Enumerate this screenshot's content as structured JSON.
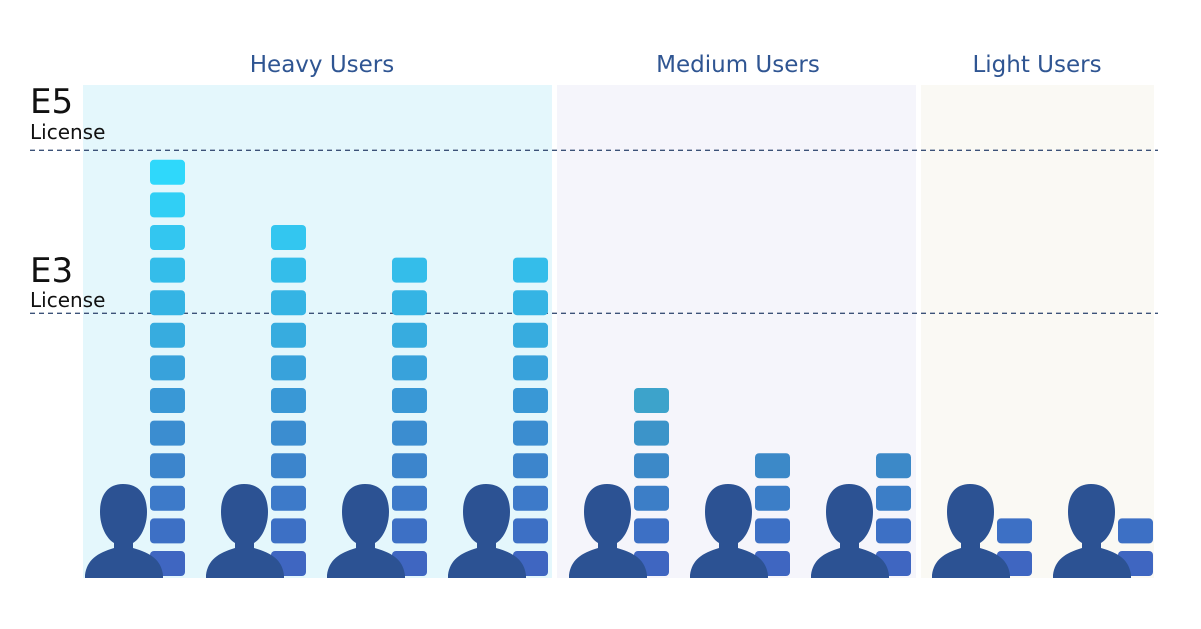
{
  "chart_data": {
    "type": "bar",
    "title": "",
    "xlabel": "",
    "ylabel": "",
    "groups": [
      {
        "label": "Heavy Users",
        "bg": "#e4f7fc",
        "users": [
          13,
          11,
          10,
          10
        ]
      },
      {
        "label": "Medium Users",
        "bg": "#f5f5fb",
        "users": [
          6,
          4,
          4
        ]
      },
      {
        "label": "Light Users",
        "bg": "#faf9f4",
        "users": [
          2,
          2
        ]
      }
    ],
    "thresholds": [
      {
        "code": "E5",
        "word": "License",
        "value": 13
      },
      {
        "code": "E3",
        "word": "License",
        "value": 8
      }
    ],
    "unit_icon": "user-silhouette-icon",
    "colors": {
      "user": "#2c5293",
      "block_top": "#2fd5fb",
      "block_bottom": "#3f66c1",
      "dashed_line": "#3c5278"
    }
  }
}
